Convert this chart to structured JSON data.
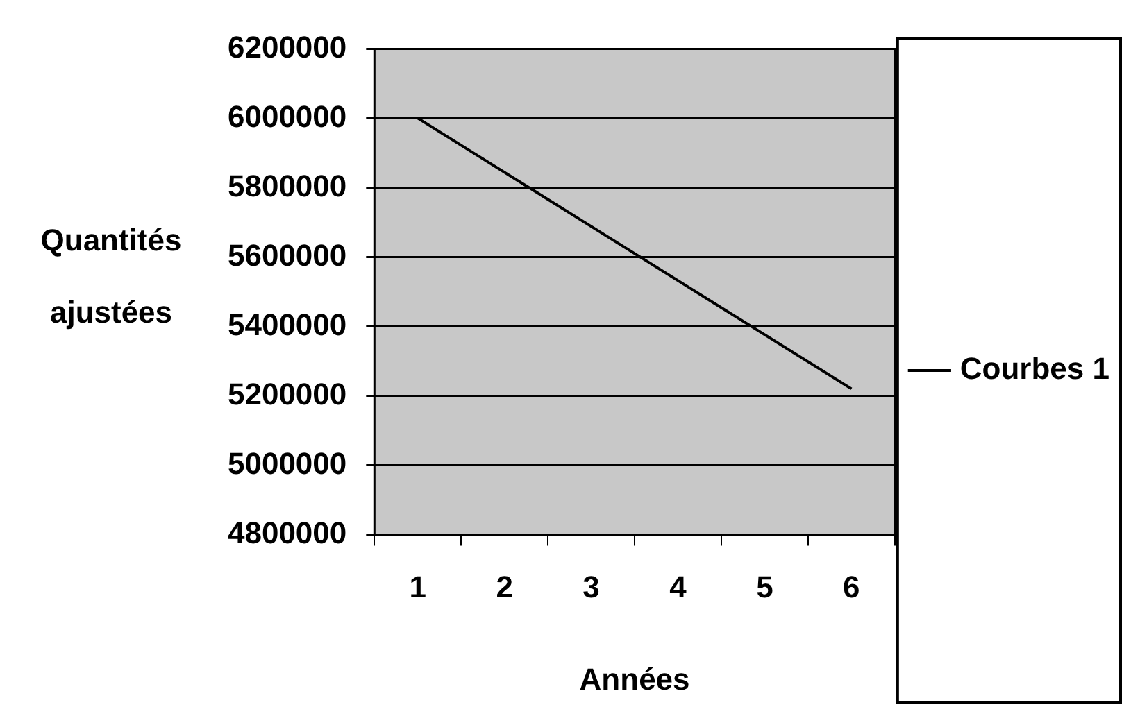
{
  "chart_data": {
    "type": "line",
    "xlabel": "Années",
    "ylabel": "Quantités ajustées",
    "categories": [
      "1",
      "2",
      "3",
      "4",
      "5",
      "6"
    ],
    "series": [
      {
        "name": "Courbes 1",
        "color": "#000000",
        "values": [
          6000000,
          5844000,
          5688000,
          5532000,
          5376000,
          5220000
        ]
      }
    ],
    "ylim": [
      4800000,
      6200000
    ],
    "yticks": [
      4800000,
      5000000,
      5200000,
      5400000,
      5600000,
      5800000,
      6000000,
      6200000
    ],
    "grid": "y",
    "legend": "right",
    "marker": "none",
    "line_style": "solid"
  }
}
